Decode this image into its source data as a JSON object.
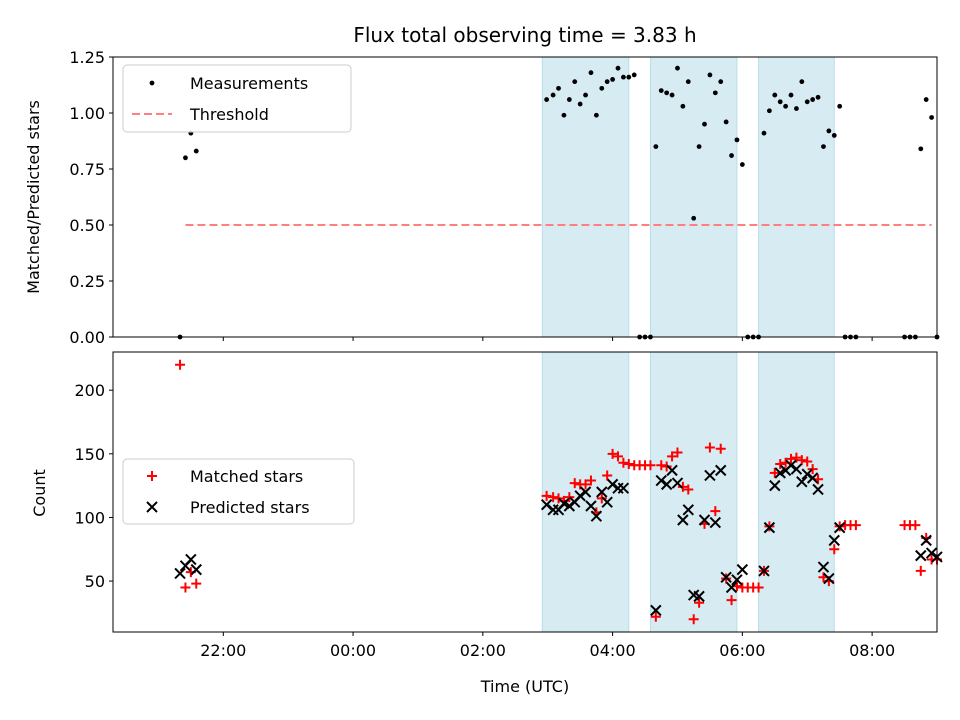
{
  "title": "Flux total observing time = 3.83 h",
  "colors": {
    "band": "#add8e6",
    "measurement": "#000000",
    "threshold": "#ff7f7f",
    "matched": "#ff0000",
    "predicted": "#000000"
  },
  "chart_data": [
    {
      "type": "scatter",
      "ylabel": "Matched/Predicted stars",
      "ylim": [
        0,
        1.25
      ],
      "yticks": [
        "0.00",
        "0.25",
        "0.50",
        "0.75",
        "1.00",
        "1.25"
      ],
      "xlim_hours": [
        20.3,
        33.0
      ],
      "legend": {
        "placement": "upper-left",
        "entries": [
          "Measurements",
          "Threshold"
        ]
      },
      "threshold": {
        "name": "Threshold",
        "value": 0.5,
        "x_range": [
          "21:25",
          "08:55"
        ]
      },
      "shaded_intervals": [
        [
          "02:55",
          "04:15"
        ],
        [
          "04:35",
          "05:55"
        ],
        [
          "06:15",
          "07:25"
        ]
      ],
      "series": [
        {
          "name": "Measurements",
          "points": [
            [
              "21:20",
              0.0
            ],
            [
              "21:25",
              0.8
            ],
            [
              "21:30",
              0.91
            ],
            [
              "21:35",
              0.83
            ],
            [
              "02:59",
              1.06
            ],
            [
              "03:05",
              1.08
            ],
            [
              "03:10",
              1.11
            ],
            [
              "03:15",
              0.99
            ],
            [
              "03:20",
              1.06
            ],
            [
              "03:25",
              1.14
            ],
            [
              "03:30",
              1.04
            ],
            [
              "03:35",
              1.08
            ],
            [
              "03:40",
              1.18
            ],
            [
              "03:45",
              0.99
            ],
            [
              "03:50",
              1.11
            ],
            [
              "03:55",
              1.14
            ],
            [
              "04:00",
              1.15
            ],
            [
              "04:05",
              1.2
            ],
            [
              "04:10",
              1.16
            ],
            [
              "04:15",
              1.16
            ],
            [
              "04:20",
              1.17
            ],
            [
              "04:25",
              0.0
            ],
            [
              "04:30",
              0.0
            ],
            [
              "04:35",
              0.0
            ],
            [
              "04:40",
              0.85
            ],
            [
              "04:45",
              1.1
            ],
            [
              "04:50",
              1.09
            ],
            [
              "04:55",
              1.08
            ],
            [
              "05:00",
              1.2
            ],
            [
              "05:05",
              1.03
            ],
            [
              "05:10",
              1.14
            ],
            [
              "05:15",
              0.53
            ],
            [
              "05:20",
              0.85
            ],
            [
              "05:25",
              0.95
            ],
            [
              "05:30",
              1.17
            ],
            [
              "05:35",
              1.09
            ],
            [
              "05:40",
              1.14
            ],
            [
              "05:45",
              0.96
            ],
            [
              "05:50",
              0.81
            ],
            [
              "05:55",
              0.88
            ],
            [
              "06:00",
              0.77
            ],
            [
              "06:05",
              0.0
            ],
            [
              "06:10",
              0.0
            ],
            [
              "06:15",
              0.0
            ],
            [
              "06:20",
              0.91
            ],
            [
              "06:25",
              1.01
            ],
            [
              "06:30",
              1.08
            ],
            [
              "06:35",
              1.05
            ],
            [
              "06:40",
              1.03
            ],
            [
              "06:45",
              1.08
            ],
            [
              "06:50",
              1.02
            ],
            [
              "06:55",
              1.14
            ],
            [
              "07:00",
              1.05
            ],
            [
              "07:05",
              1.06
            ],
            [
              "07:10",
              1.07
            ],
            [
              "07:15",
              0.85
            ],
            [
              "07:20",
              0.92
            ],
            [
              "07:25",
              0.9
            ],
            [
              "07:30",
              1.03
            ],
            [
              "07:35",
              0.0
            ],
            [
              "07:40",
              0.0
            ],
            [
              "07:45",
              0.0
            ],
            [
              "08:30",
              0.0
            ],
            [
              "08:35",
              0.0
            ],
            [
              "08:40",
              0.0
            ],
            [
              "08:45",
              0.84
            ],
            [
              "08:50",
              1.06
            ],
            [
              "08:55",
              0.98
            ],
            [
              "09:00",
              0.0
            ]
          ]
        }
      ]
    },
    {
      "type": "scatter",
      "xlabel": "Time (UTC)",
      "ylabel": "Count",
      "ylim": [
        10,
        230
      ],
      "yticks": [
        "50",
        "100",
        "150",
        "200"
      ],
      "xticks": [
        "22:00",
        "00:00",
        "02:00",
        "04:00",
        "06:00",
        "08:00"
      ],
      "xlim_hours": [
        20.3,
        33.0
      ],
      "legend": {
        "placement": "center-left",
        "entries": [
          "Matched stars",
          "Predicted stars"
        ]
      },
      "shaded_intervals": [
        [
          "02:55",
          "04:15"
        ],
        [
          "04:35",
          "05:55"
        ],
        [
          "06:15",
          "07:25"
        ]
      ],
      "series": [
        {
          "name": "Matched stars",
          "points": [
            [
              "21:20",
              220
            ],
            [
              "21:25",
              45
            ],
            [
              "21:30",
              57
            ],
            [
              "21:35",
              48
            ],
            [
              "02:59",
              117
            ],
            [
              "03:05",
              116
            ],
            [
              "03:10",
              115
            ],
            [
              "03:15",
              113
            ],
            [
              "03:20",
              116
            ],
            [
              "03:25",
              127
            ],
            [
              "03:30",
              126
            ],
            [
              "03:35",
              126
            ],
            [
              "03:40",
              129
            ],
            [
              "03:45",
              104
            ],
            [
              "03:50",
              115
            ],
            [
              "03:55",
              133
            ],
            [
              "04:00",
              150
            ],
            [
              "04:05",
              148
            ],
            [
              "04:10",
              143
            ],
            [
              "04:15",
              142
            ],
            [
              "04:20",
              141
            ],
            [
              "04:25",
              141
            ],
            [
              "04:30",
              141
            ],
            [
              "04:35",
              141
            ],
            [
              "04:40",
              22
            ],
            [
              "04:45",
              141
            ],
            [
              "04:50",
              140
            ],
            [
              "04:55",
              148
            ],
            [
              "05:00",
              151
            ],
            [
              "05:05",
              124
            ],
            [
              "05:10",
              122
            ],
            [
              "05:15",
              20
            ],
            [
              "05:20",
              33
            ],
            [
              "05:25",
              95
            ],
            [
              "05:30",
              155
            ],
            [
              "05:35",
              105
            ],
            [
              "05:40",
              154
            ],
            [
              "05:45",
              52
            ],
            [
              "05:50",
              35
            ],
            [
              "05:55",
              46
            ],
            [
              "06:00",
              45
            ],
            [
              "06:05",
              45
            ],
            [
              "06:10",
              45
            ],
            [
              "06:15",
              45
            ],
            [
              "06:20",
              58
            ],
            [
              "06:25",
              93
            ],
            [
              "06:30",
              135
            ],
            [
              "06:35",
              142
            ],
            [
              "06:40",
              143
            ],
            [
              "06:45",
              146
            ],
            [
              "06:50",
              147
            ],
            [
              "06:55",
              145
            ],
            [
              "07:00",
              144
            ],
            [
              "07:05",
              138
            ],
            [
              "07:10",
              130
            ],
            [
              "07:15",
              53
            ],
            [
              "07:20",
              50
            ],
            [
              "07:25",
              75
            ],
            [
              "07:30",
              93
            ],
            [
              "07:35",
              94
            ],
            [
              "07:40",
              94
            ],
            [
              "07:45",
              94
            ],
            [
              "08:30",
              94
            ],
            [
              "08:35",
              94
            ],
            [
              "08:40",
              94
            ],
            [
              "08:45",
              58
            ],
            [
              "08:50",
              84
            ],
            [
              "08:55",
              67
            ],
            [
              "09:00",
              67
            ]
          ]
        },
        {
          "name": "Predicted stars",
          "points": [
            [
              "21:20",
              56
            ],
            [
              "21:25",
              62
            ],
            [
              "21:30",
              67
            ],
            [
              "21:35",
              59
            ],
            [
              "02:59",
              110
            ],
            [
              "03:05",
              106
            ],
            [
              "03:10",
              106
            ],
            [
              "03:15",
              111
            ],
            [
              "03:20",
              109
            ],
            [
              "03:25",
              112
            ],
            [
              "03:30",
              117
            ],
            [
              "03:35",
              120
            ],
            [
              "03:40",
              109
            ],
            [
              "03:45",
              101
            ],
            [
              "03:50",
              120
            ],
            [
              "03:55",
              112
            ],
            [
              "04:00",
              126
            ],
            [
              "04:05",
              123
            ],
            [
              "04:10",
              123
            ],
            [
              "04:40",
              27
            ],
            [
              "04:45",
              129
            ],
            [
              "04:50",
              126
            ],
            [
              "04:55",
              137
            ],
            [
              "05:00",
              127
            ],
            [
              "05:05",
              98
            ],
            [
              "05:10",
              106
            ],
            [
              "05:15",
              39
            ],
            [
              "05:20",
              38
            ],
            [
              "05:25",
              98
            ],
            [
              "05:30",
              133
            ],
            [
              "05:35",
              96
            ],
            [
              "05:40",
              137
            ],
            [
              "05:45",
              53
            ],
            [
              "05:50",
              45
            ],
            [
              "05:55",
              51
            ],
            [
              "06:00",
              59
            ],
            [
              "06:20",
              58
            ],
            [
              "06:25",
              92
            ],
            [
              "06:30",
              125
            ],
            [
              "06:35",
              135
            ],
            [
              "06:40",
              137
            ],
            [
              "06:45",
              141
            ],
            [
              "06:50",
              138
            ],
            [
              "06:55",
              128
            ],
            [
              "07:00",
              134
            ],
            [
              "07:05",
              131
            ],
            [
              "07:10",
              122
            ],
            [
              "07:15",
              61
            ],
            [
              "07:20",
              52
            ],
            [
              "07:25",
              82
            ],
            [
              "07:30",
              92
            ],
            [
              "08:45",
              70
            ],
            [
              "08:50",
              82
            ],
            [
              "08:55",
              72
            ],
            [
              "09:00",
              69
            ]
          ]
        }
      ]
    }
  ]
}
